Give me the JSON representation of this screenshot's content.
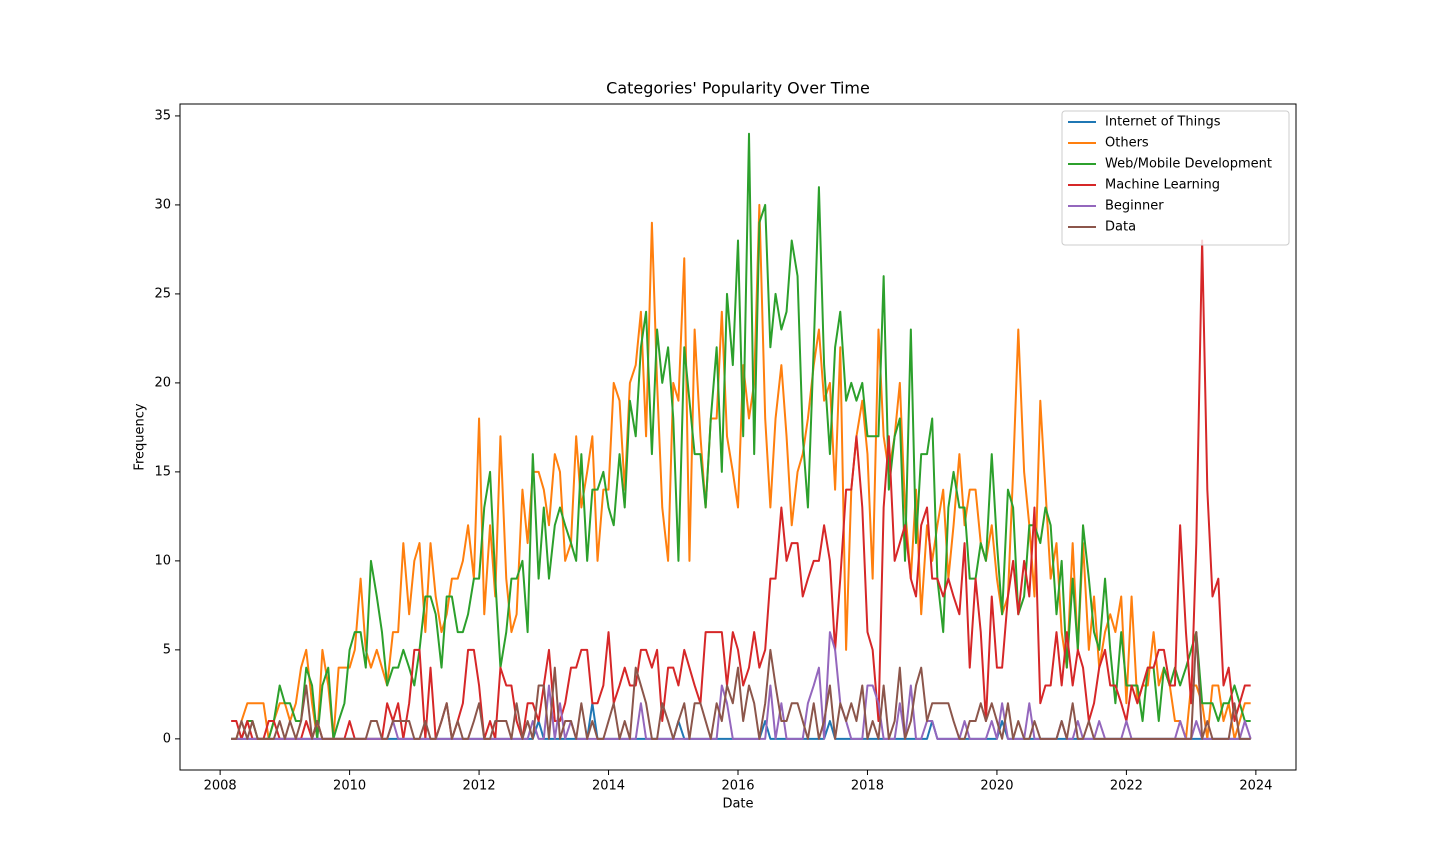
{
  "chart_data": {
    "type": "line",
    "title": "Categories' Popularity Over Time",
    "xlabel": "Date",
    "ylabel": "Frequency",
    "xlim": [
      2007.38,
      2024.62
    ],
    "xticks": [
      2008,
      2010,
      2012,
      2014,
      2016,
      2018,
      2020,
      2022,
      2024
    ],
    "ylim": [
      -1.75,
      35.67
    ],
    "yticks": [
      0,
      5,
      10,
      15,
      20,
      25,
      30,
      35
    ],
    "grid": false,
    "legend": "upper right",
    "x": [
      2008.17,
      2008.25,
      2008.33,
      2008.42,
      2008.5,
      2008.58,
      2008.67,
      2008.75,
      2008.83,
      2008.92,
      2009.0,
      2009.08,
      2009.17,
      2009.25,
      2009.33,
      2009.42,
      2009.5,
      2009.58,
      2009.67,
      2009.75,
      2009.83,
      2009.92,
      2010.0,
      2010.08,
      2010.17,
      2010.25,
      2010.33,
      2010.42,
      2010.5,
      2010.58,
      2010.67,
      2010.75,
      2010.83,
      2010.92,
      2011.0,
      2011.08,
      2011.17,
      2011.25,
      2011.33,
      2011.42,
      2011.5,
      2011.58,
      2011.67,
      2011.75,
      2011.83,
      2011.92,
      2012.0,
      2012.08,
      2012.17,
      2012.25,
      2012.33,
      2012.42,
      2012.5,
      2012.58,
      2012.67,
      2012.75,
      2012.83,
      2012.92,
      2013.0,
      2013.08,
      2013.17,
      2013.25,
      2013.33,
      2013.42,
      2013.5,
      2013.58,
      2013.67,
      2013.75,
      2013.83,
      2013.92,
      2014.0,
      2014.08,
      2014.17,
      2014.25,
      2014.33,
      2014.42,
      2014.5,
      2014.58,
      2014.67,
      2014.75,
      2014.83,
      2014.92,
      2015.0,
      2015.08,
      2015.17,
      2015.25,
      2015.33,
      2015.42,
      2015.5,
      2015.58,
      2015.67,
      2015.75,
      2015.83,
      2015.92,
      2016.0,
      2016.08,
      2016.17,
      2016.25,
      2016.33,
      2016.42,
      2016.5,
      2016.58,
      2016.67,
      2016.75,
      2016.83,
      2016.92,
      2017.0,
      2017.08,
      2017.17,
      2017.25,
      2017.33,
      2017.42,
      2017.5,
      2017.58,
      2017.67,
      2017.75,
      2017.83,
      2017.92,
      2018.0,
      2018.08,
      2018.17,
      2018.25,
      2018.33,
      2018.42,
      2018.5,
      2018.58,
      2018.67,
      2018.75,
      2018.83,
      2018.92,
      2019.0,
      2019.08,
      2019.17,
      2019.25,
      2019.33,
      2019.42,
      2019.5,
      2019.58,
      2019.67,
      2019.75,
      2019.83,
      2019.92,
      2020.0,
      2020.08,
      2020.17,
      2020.25,
      2020.33,
      2020.42,
      2020.5,
      2020.58,
      2020.67,
      2020.75,
      2020.83,
      2020.92,
      2021.0,
      2021.08,
      2021.17,
      2021.25,
      2021.33,
      2021.42,
      2021.5,
      2021.58,
      2021.67,
      2021.75,
      2021.83,
      2021.92,
      2022.0,
      2022.08,
      2022.17,
      2022.25,
      2022.33,
      2022.42,
      2022.5,
      2022.58,
      2022.67,
      2022.75,
      2022.83,
      2022.92,
      2023.0,
      2023.08,
      2023.17,
      2023.25,
      2023.33,
      2023.42,
      2023.5,
      2023.58,
      2023.67,
      2023.75,
      2023.83,
      2023.92
    ],
    "series": [
      {
        "name": "Internet of Things",
        "color": "#1f77b4",
        "values": [
          0,
          0,
          0,
          0,
          0,
          0,
          0,
          0,
          0,
          0,
          0,
          0,
          0,
          0,
          0,
          0,
          0,
          0,
          0,
          0,
          0,
          0,
          0,
          0,
          0,
          0,
          0,
          0,
          0,
          0,
          0,
          0,
          0,
          0,
          0,
          0,
          0,
          0,
          0,
          0,
          0,
          0,
          0,
          0,
          0,
          0,
          0,
          0,
          0,
          0,
          0,
          0,
          0,
          0,
          0,
          0,
          0,
          1,
          0,
          0,
          0,
          0,
          0,
          0,
          0,
          0,
          0,
          2,
          0,
          0,
          0,
          0,
          0,
          0,
          0,
          0,
          0,
          0,
          0,
          0,
          0,
          0,
          0,
          1,
          0,
          0,
          0,
          0,
          0,
          0,
          0,
          0,
          0,
          0,
          0,
          0,
          0,
          0,
          0,
          1,
          0,
          0,
          0,
          0,
          0,
          0,
          0,
          0,
          0,
          0,
          0,
          1,
          0,
          0,
          0,
          0,
          0,
          0,
          0,
          0,
          0,
          0,
          0,
          0,
          0,
          0,
          0,
          0,
          0,
          0,
          1,
          0,
          0,
          0,
          0,
          0,
          0,
          0,
          0,
          0,
          0,
          0,
          0,
          1,
          0,
          0,
          0,
          0,
          0,
          0,
          0,
          0,
          0,
          0,
          0,
          0,
          0,
          0,
          0,
          0,
          0,
          0,
          0,
          0,
          0,
          0,
          0,
          0,
          0,
          0,
          0,
          0,
          0,
          0,
          0,
          0,
          0,
          0,
          0,
          0,
          0,
          0,
          0,
          0,
          0,
          0,
          0,
          0,
          0,
          0
        ]
      },
      {
        "name": "Others",
        "color": "#ff7f0e",
        "values": [
          0,
          0,
          1,
          2,
          2,
          2,
          2,
          0,
          1,
          2,
          2,
          1,
          2,
          4,
          5,
          2,
          0,
          5,
          3,
          0,
          4,
          4,
          4,
          5,
          9,
          5,
          4,
          5,
          4,
          3,
          6,
          6,
          11,
          7,
          10,
          11,
          6,
          11,
          8,
          6,
          7,
          9,
          9,
          10,
          12,
          9,
          18,
          7,
          12,
          8,
          17,
          9,
          6,
          7,
          14,
          11,
          15,
          15,
          14,
          12,
          16,
          15,
          10,
          11,
          17,
          13,
          15,
          17,
          10,
          14,
          14,
          20,
          19,
          14,
          20,
          21,
          24,
          17,
          29,
          20,
          13,
          10,
          20,
          19,
          27,
          10,
          23,
          17,
          13,
          18,
          18,
          24,
          17,
          15,
          13,
          21,
          18,
          20,
          30,
          18,
          13,
          18,
          21,
          17,
          12,
          15,
          16,
          18,
          21,
          23,
          19,
          20,
          14,
          22,
          5,
          14,
          17,
          19,
          16,
          9,
          23,
          17,
          15,
          17,
          20,
          13,
          9,
          14,
          7,
          12,
          10,
          12,
          14,
          9,
          12,
          16,
          12,
          14,
          14,
          11,
          10,
          12,
          9,
          7,
          8,
          15,
          23,
          15,
          12,
          8,
          19,
          14,
          9,
          11,
          6,
          4,
          11,
          5,
          11,
          5,
          8,
          4,
          6,
          7,
          6,
          8,
          2,
          8,
          2,
          3,
          3,
          6,
          3,
          4,
          3,
          1,
          1,
          0,
          3,
          3,
          2,
          0,
          3,
          3,
          1,
          2,
          0,
          1,
          2,
          2
        ]
      },
      {
        "name": "Web/Mobile Development",
        "color": "#2ca02c",
        "values": [
          0,
          0,
          0,
          1,
          1,
          0,
          0,
          0,
          1,
          3,
          2,
          2,
          1,
          1,
          4,
          3,
          0,
          3,
          4,
          0,
          1,
          2,
          5,
          6,
          6,
          4,
          10,
          8,
          6,
          3,
          4,
          4,
          5,
          4,
          3,
          5,
          8,
          8,
          7,
          4,
          8,
          8,
          6,
          6,
          7,
          9,
          9,
          13,
          15,
          9,
          4,
          6,
          9,
          9,
          10,
          6,
          16,
          9,
          13,
          9,
          12,
          13,
          12,
          11,
          10,
          16,
          10,
          14,
          14,
          15,
          13,
          12,
          16,
          13,
          19,
          17,
          22,
          24,
          16,
          23,
          20,
          22,
          18,
          10,
          22,
          19,
          16,
          16,
          13,
          18,
          22,
          15,
          25,
          21,
          28,
          17,
          34,
          16,
          29,
          30,
          22,
          25,
          23,
          24,
          28,
          26,
          17,
          13,
          22,
          31,
          21,
          16,
          22,
          24,
          19,
          20,
          19,
          20,
          17,
          17,
          17,
          26,
          14,
          17,
          18,
          10,
          23,
          11,
          16,
          16,
          18,
          9,
          6,
          13,
          15,
          13,
          13,
          9,
          9,
          11,
          10,
          16,
          11,
          7,
          14,
          13,
          7,
          8,
          12,
          12,
          11,
          13,
          12,
          7,
          10,
          4,
          9,
          5,
          12,
          9,
          6,
          5,
          9,
          5,
          2,
          6,
          3,
          3,
          3,
          1,
          4,
          4,
          1,
          4,
          3,
          4,
          3,
          4,
          5,
          6,
          2,
          2,
          2,
          1,
          2,
          2,
          3,
          2,
          1,
          1
        ]
      },
      {
        "name": "Machine Learning",
        "color": "#d62728",
        "values": [
          1,
          1,
          0,
          1,
          0,
          0,
          0,
          1,
          1,
          0,
          0,
          0,
          0,
          0,
          1,
          0,
          1,
          0,
          0,
          0,
          0,
          0,
          1,
          0,
          0,
          0,
          0,
          0,
          0,
          2,
          1,
          2,
          0,
          2,
          5,
          5,
          0,
          4,
          0,
          1,
          2,
          0,
          1,
          2,
          5,
          5,
          3,
          0,
          1,
          0,
          4,
          3,
          3,
          1,
          0,
          2,
          2,
          1,
          3,
          5,
          1,
          1,
          2,
          4,
          4,
          5,
          5,
          2,
          2,
          3,
          6,
          2,
          3,
          4,
          3,
          3,
          5,
          5,
          4,
          5,
          1,
          4,
          4,
          3,
          5,
          4,
          3,
          2,
          6,
          6,
          6,
          6,
          3,
          6,
          5,
          3,
          4,
          6,
          4,
          5,
          9,
          9,
          13,
          10,
          11,
          11,
          8,
          9,
          10,
          10,
          12,
          10,
          5,
          9,
          14,
          14,
          17,
          13,
          6,
          5,
          1,
          13,
          17,
          10,
          11,
          12,
          9,
          8,
          12,
          13,
          9,
          9,
          8,
          9,
          8,
          7,
          11,
          4,
          9,
          6,
          1,
          8,
          4,
          4,
          8,
          10,
          7,
          10,
          8,
          13,
          2,
          3,
          3,
          6,
          3,
          6,
          3,
          5,
          4,
          1,
          2,
          4,
          5,
          3,
          3,
          2,
          1,
          3,
          2,
          3,
          4,
          4,
          5,
          5,
          3,
          3,
          12,
          6,
          2,
          11,
          28,
          14,
          8,
          9,
          3,
          4,
          1,
          2,
          3,
          3
        ]
      },
      {
        "name": "Beginner",
        "color": "#9467bd",
        "values": [
          0,
          0,
          0,
          0,
          0,
          0,
          0,
          0,
          0,
          0,
          0,
          0,
          0,
          0,
          0,
          0,
          0,
          0,
          0,
          0,
          0,
          0,
          0,
          0,
          0,
          0,
          0,
          0,
          0,
          0,
          1,
          0,
          0,
          0,
          0,
          0,
          0,
          0,
          0,
          0,
          0,
          0,
          0,
          0,
          0,
          0,
          0,
          0,
          0,
          0,
          0,
          0,
          0,
          0,
          0,
          0,
          1,
          0,
          0,
          3,
          0,
          2,
          0,
          1,
          0,
          0,
          0,
          0,
          0,
          0,
          0,
          0,
          0,
          0,
          0,
          0,
          2,
          0,
          0,
          0,
          0,
          0,
          0,
          0,
          0,
          0,
          0,
          0,
          0,
          0,
          0,
          3,
          2,
          0,
          0,
          0,
          0,
          0,
          0,
          0,
          3,
          0,
          2,
          0,
          0,
          0,
          0,
          2,
          3,
          4,
          0,
          6,
          5,
          2,
          1,
          0,
          0,
          0,
          3,
          3,
          2,
          0,
          0,
          0,
          2,
          0,
          3,
          0,
          0,
          1,
          1,
          0,
          0,
          0,
          0,
          0,
          1,
          0,
          0,
          0,
          0,
          1,
          0,
          2,
          0,
          0,
          0,
          0,
          2,
          0,
          0,
          0,
          0,
          0,
          1,
          0,
          0,
          1,
          0,
          0,
          0,
          1,
          0,
          0,
          0,
          0,
          1,
          0,
          0,
          0,
          0,
          0,
          0,
          0,
          0,
          0,
          1,
          0,
          0,
          1,
          0,
          0,
          0,
          0,
          0,
          0,
          0,
          0,
          1,
          0
        ]
      },
      {
        "name": "Data",
        "color": "#8c564b",
        "values": [
          0,
          0,
          1,
          0,
          1,
          0,
          0,
          0,
          0,
          1,
          0,
          1,
          0,
          1,
          3,
          0,
          1,
          0,
          0,
          0,
          0,
          0,
          0,
          0,
          0,
          0,
          1,
          1,
          0,
          0,
          1,
          1,
          1,
          1,
          0,
          0,
          1,
          0,
          0,
          1,
          2,
          0,
          1,
          0,
          0,
          1,
          2,
          0,
          0,
          1,
          1,
          1,
          0,
          2,
          0,
          1,
          0,
          3,
          3,
          0,
          4,
          0,
          1,
          1,
          0,
          2,
          0,
          1,
          0,
          0,
          1,
          2,
          0,
          1,
          0,
          4,
          3,
          2,
          0,
          0,
          2,
          1,
          0,
          1,
          2,
          0,
          2,
          2,
          1,
          0,
          2,
          1,
          3,
          2,
          4,
          1,
          3,
          2,
          0,
          2,
          5,
          3,
          1,
          1,
          2,
          2,
          1,
          0,
          2,
          0,
          1,
          3,
          0,
          2,
          1,
          2,
          1,
          3,
          0,
          1,
          0,
          3,
          0,
          1,
          4,
          0,
          1,
          3,
          4,
          1,
          2,
          2,
          2,
          2,
          1,
          0,
          0,
          1,
          1,
          2,
          1,
          2,
          1,
          0,
          2,
          0,
          1,
          0,
          0,
          1,
          0,
          0,
          0,
          0,
          1,
          0,
          2,
          0,
          0,
          1,
          0,
          0,
          0,
          0,
          0,
          0,
          0,
          0,
          0,
          0,
          0,
          0,
          0,
          0,
          0,
          0,
          0,
          0,
          0,
          6,
          0,
          1,
          0,
          0,
          0,
          0,
          2,
          0,
          0,
          0
        ]
      }
    ]
  }
}
